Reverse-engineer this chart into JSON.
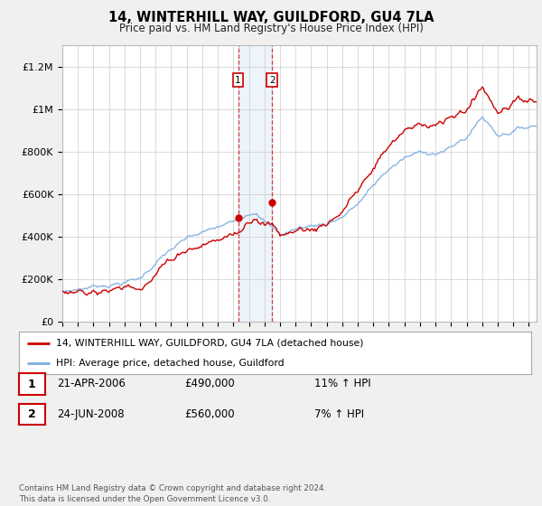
{
  "title": "14, WINTERHILL WAY, GUILDFORD, GU4 7LA",
  "subtitle": "Price paid vs. HM Land Registry's House Price Index (HPI)",
  "ylabel_ticks": [
    "£0",
    "£200K",
    "£400K",
    "£600K",
    "£800K",
    "£1M",
    "£1.2M"
  ],
  "ytick_values": [
    0,
    200000,
    400000,
    600000,
    800000,
    1000000,
    1200000
  ],
  "ylim": [
    0,
    1300000
  ],
  "xlim_start": 1995.0,
  "xlim_end": 2025.5,
  "transaction1": {
    "date_num": 2006.3,
    "price": 490000,
    "label": "1",
    "date_str": "21-APR-2006",
    "pct": "11% ↑ HPI"
  },
  "transaction2": {
    "date_num": 2008.5,
    "price": 560000,
    "label": "2",
    "date_str": "24-JUN-2008",
    "pct": "7% ↑ HPI"
  },
  "hpi_color": "#7aade0",
  "price_color": "#cc0000",
  "background_color": "#f0f0f0",
  "plot_bg": "#ffffff",
  "legend_label1": "14, WINTERHILL WAY, GUILDFORD, GU4 7LA (detached house)",
  "legend_label2": "HPI: Average price, detached house, Guildford",
  "footnote": "Contains HM Land Registry data © Crown copyright and database right 2024.\nThis data is licensed under the Open Government Licence v3.0.",
  "table_rows": [
    {
      "num": "1",
      "date": "21-APR-2006",
      "price": "£490,000",
      "pct": "11% ↑ HPI"
    },
    {
      "num": "2",
      "date": "24-JUN-2008",
      "price": "£560,000",
      "pct": "7% ↑ HPI"
    }
  ]
}
